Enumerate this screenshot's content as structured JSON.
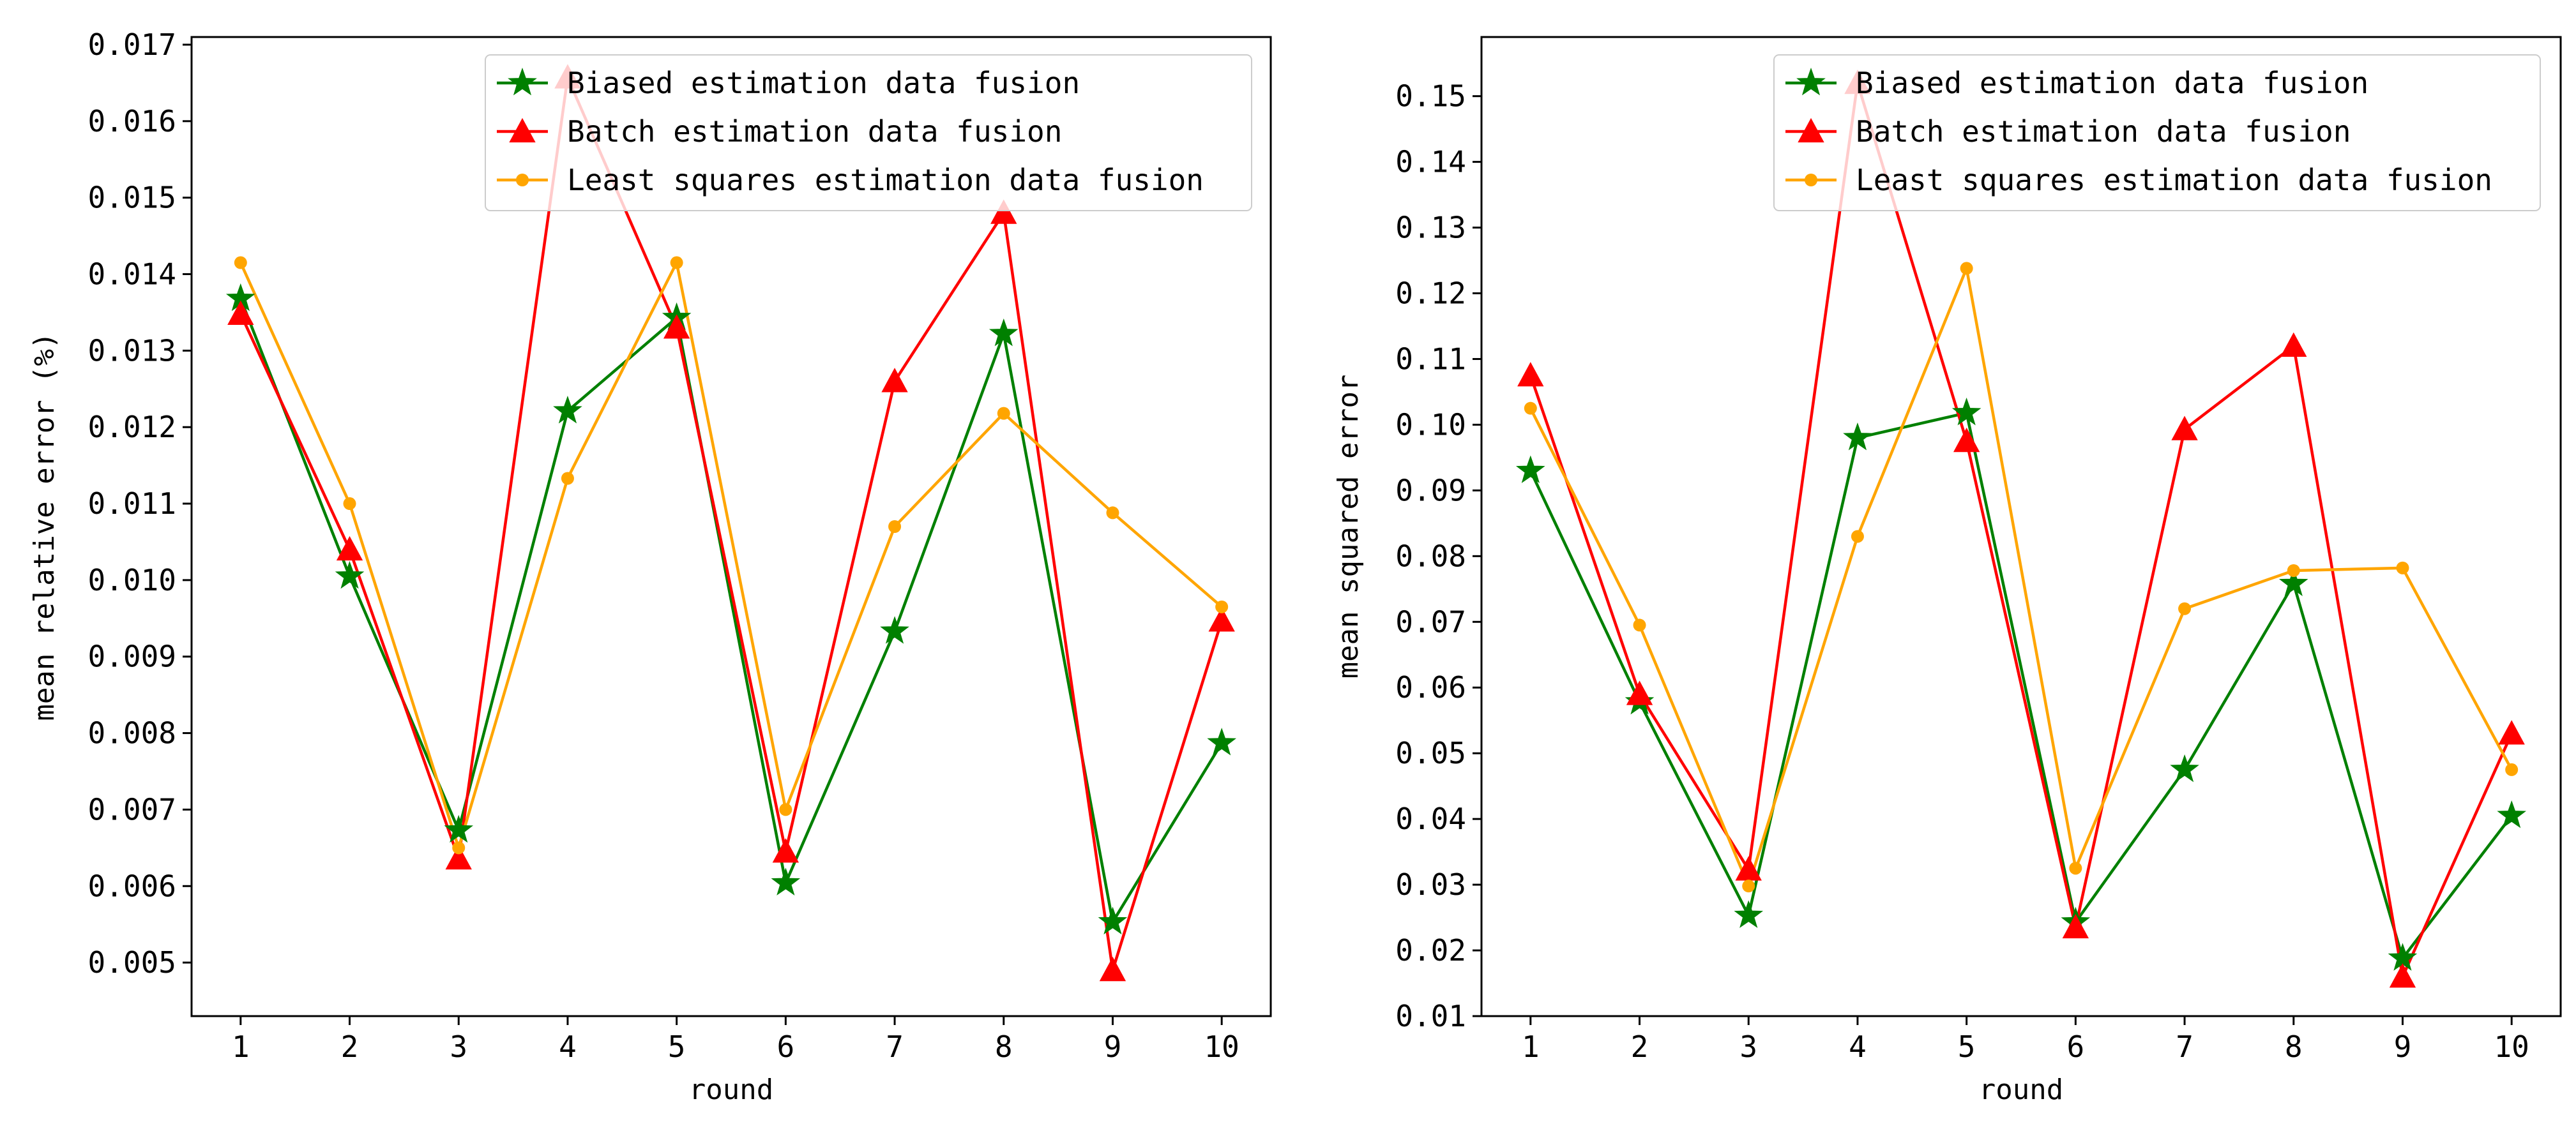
{
  "chart_data": [
    {
      "type": "line",
      "title": "",
      "xlabel": "round",
      "ylabel": "mean relative error (%)",
      "x": [
        1,
        2,
        3,
        4,
        5,
        6,
        7,
        8,
        9,
        10
      ],
      "xticks": [
        "1",
        "2",
        "3",
        "4",
        "5",
        "6",
        "7",
        "8",
        "9",
        "10"
      ],
      "xlim": [
        0.55,
        10.45
      ],
      "ylim": [
        0.0043,
        0.0171
      ],
      "yticks": [
        "0.005",
        "0.006",
        "0.007",
        "0.008",
        "0.009",
        "0.010",
        "0.011",
        "0.012",
        "0.013",
        "0.014",
        "0.015",
        "0.016",
        "0.017"
      ],
      "legend_position": "top-right",
      "grid": false,
      "series": [
        {
          "name": "Biased estimation data fusion",
          "color": "#008000",
          "marker": "star",
          "values": [
            0.01368,
            0.01005,
            0.00673,
            0.01221,
            0.01343,
            0.00604,
            0.00933,
            0.01322,
            0.00553,
            0.00787
          ]
        },
        {
          "name": "Batch estimation data fusion",
          "color": "#ff0000",
          "marker": "triangle",
          "values": [
            0.01348,
            0.0104,
            0.00636,
            0.01657,
            0.0133,
            0.00645,
            0.0126,
            0.0148,
            0.0049,
            0.00947
          ]
        },
        {
          "name": "Least squares estimation data fusion",
          "color": "#ffa500",
          "marker": "circle",
          "values": [
            0.01415,
            0.011,
            0.0065,
            0.01133,
            0.01415,
            0.007,
            0.0107,
            0.01218,
            0.01088,
            0.00965
          ]
        }
      ]
    },
    {
      "type": "line",
      "title": "",
      "xlabel": "round",
      "ylabel": "mean squared error",
      "x": [
        1,
        2,
        3,
        4,
        5,
        6,
        7,
        8,
        9,
        10
      ],
      "xticks": [
        "1",
        "2",
        "3",
        "4",
        "5",
        "6",
        "7",
        "8",
        "9",
        "10"
      ],
      "xlim": [
        0.55,
        10.45
      ],
      "ylim": [
        0.01,
        0.159
      ],
      "yticks": [
        "0.01",
        "0.02",
        "0.03",
        "0.04",
        "0.05",
        "0.06",
        "0.07",
        "0.08",
        "0.09",
        "0.10",
        "0.11",
        "0.12",
        "0.13",
        "0.14",
        "0.15"
      ],
      "legend_position": "top-right",
      "grid": false,
      "series": [
        {
          "name": "Biased estimation data fusion",
          "color": "#008000",
          "marker": "star",
          "values": [
            0.093,
            0.0578,
            0.0253,
            0.098,
            0.1018,
            0.0243,
            0.0475,
            0.0758,
            0.0188,
            0.0405
          ]
        },
        {
          "name": "Batch estimation data fusion",
          "color": "#ff0000",
          "marker": "triangle",
          "values": [
            0.1075,
            0.059,
            0.0323,
            0.152,
            0.0975,
            0.0235,
            0.0993,
            0.112,
            0.016,
            0.053
          ]
        },
        {
          "name": "Least squares estimation data fusion",
          "color": "#ffa500",
          "marker": "circle",
          "values": [
            0.1025,
            0.0695,
            0.0298,
            0.083,
            0.1238,
            0.0325,
            0.072,
            0.0778,
            0.0782,
            0.0475
          ]
        }
      ]
    }
  ]
}
